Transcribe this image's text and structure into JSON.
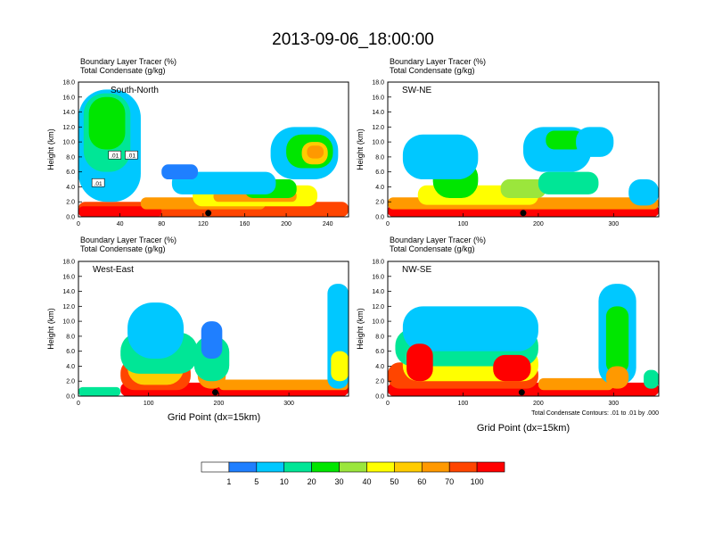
{
  "title": "2013-09-06_18:00:00",
  "panel_header": {
    "line1": "Boundary Layer Tracer   (%)",
    "line2": "Total Condensate   (g/kg)"
  },
  "y_axis": {
    "label": "Height (km)",
    "ticks": [
      "0.0",
      "2.0",
      "4.0",
      "6.0",
      "8.0",
      "10.0",
      "12.0",
      "14.0",
      "16.0",
      "18.0"
    ]
  },
  "x_axis": {
    "label": "Grid Point (dx=15km)"
  },
  "contour_note": "Total Condensate Contours: .01 to .01 by .000",
  "colors": [
    "#ffffff",
    "#1f7fff",
    "#00c8ff",
    "#00e696",
    "#00e600",
    "#9be63c",
    "#ffff00",
    "#ffcc00",
    "#ff9900",
    "#ff4500",
    "#ff0000"
  ],
  "colorbar": {
    "labels": [
      "1",
      "5",
      "10",
      "20",
      "30",
      "40",
      "50",
      "60",
      "70",
      "100"
    ]
  },
  "chart_data": [
    {
      "type": "heatmap",
      "name": "South-North",
      "xlim": [
        0,
        260
      ],
      "ylim": [
        0,
        18
      ],
      "x_ticks": [
        "0",
        "40",
        "80",
        "120",
        "160",
        "200",
        "240"
      ],
      "x_tick_values": [
        0,
        40,
        80,
        120,
        160,
        200,
        240
      ],
      "marker_x": 125,
      "contour_labels": [
        {
          "text": ".01",
          "x": 35,
          "y": 8.2
        },
        {
          "text": ".01",
          "x": 51,
          "y": 8.2
        },
        {
          "text": ".01",
          "x": 19,
          "y": 4.5
        }
      ],
      "blobs": [
        {
          "x": [
            0,
            260
          ],
          "y": [
            0,
            2.0
          ],
          "lev": 9
        },
        {
          "x": [
            0,
            80
          ],
          "y": [
            0,
            1.4
          ],
          "lev": 10
        },
        {
          "x": [
            60,
            180
          ],
          "y": [
            1.0,
            2.6
          ],
          "lev": 8
        },
        {
          "x": [
            110,
            230
          ],
          "y": [
            1.4,
            4.2
          ],
          "lev": 6
        },
        {
          "x": [
            130,
            210
          ],
          "y": [
            2.0,
            3.5
          ],
          "lev": 8
        },
        {
          "x": [
            160,
            210
          ],
          "y": [
            2.5,
            5.0
          ],
          "lev": 4
        },
        {
          "x": [
            90,
            190
          ],
          "y": [
            3.0,
            6.0
          ],
          "lev": 2
        },
        {
          "x": [
            0,
            60
          ],
          "y": [
            2.0,
            17.0
          ],
          "lev": 2
        },
        {
          "x": [
            5,
            50
          ],
          "y": [
            6.0,
            16.5
          ],
          "lev": 3
        },
        {
          "x": [
            10,
            45
          ],
          "y": [
            9.0,
            16.0
          ],
          "lev": 4
        },
        {
          "x": [
            185,
            250
          ],
          "y": [
            5.0,
            12.0
          ],
          "lev": 2
        },
        {
          "x": [
            200,
            245
          ],
          "y": [
            6.5,
            11.0
          ],
          "lev": 4
        },
        {
          "x": [
            215,
            240
          ],
          "y": [
            7.0,
            10.0
          ],
          "lev": 7
        },
        {
          "x": [
            220,
            236
          ],
          "y": [
            7.8,
            9.5
          ],
          "lev": 8
        },
        {
          "x": [
            80,
            115
          ],
          "y": [
            5.0,
            7.0
          ],
          "lev": 1
        }
      ]
    },
    {
      "type": "heatmap",
      "name": "SW-NE",
      "xlim": [
        0,
        360
      ],
      "ylim": [
        0,
        18
      ],
      "x_ticks": [
        "0",
        "100",
        "200",
        "300"
      ],
      "x_tick_values": [
        0,
        100,
        200,
        300
      ],
      "marker_x": 180,
      "contour_labels": [],
      "blobs": [
        {
          "x": [
            0,
            360
          ],
          "y": [
            0,
            1.6
          ],
          "lev": 10
        },
        {
          "x": [
            0,
            360
          ],
          "y": [
            1.0,
            2.6
          ],
          "lev": 8
        },
        {
          "x": [
            40,
            200
          ],
          "y": [
            1.6,
            4.2
          ],
          "lev": 6
        },
        {
          "x": [
            60,
            120
          ],
          "y": [
            2.5,
            7.5
          ],
          "lev": 4
        },
        {
          "x": [
            20,
            120
          ],
          "y": [
            5.0,
            11.0
          ],
          "lev": 2
        },
        {
          "x": [
            150,
            210
          ],
          "y": [
            2.5,
            5.0
          ],
          "lev": 5
        },
        {
          "x": [
            200,
            280
          ],
          "y": [
            3.0,
            6.0
          ],
          "lev": 3
        },
        {
          "x": [
            180,
            270
          ],
          "y": [
            6.0,
            12.0
          ],
          "lev": 2
        },
        {
          "x": [
            210,
            260
          ],
          "y": [
            9.0,
            11.5
          ],
          "lev": 4
        },
        {
          "x": [
            250,
            300
          ],
          "y": [
            8.0,
            12.0
          ],
          "lev": 2
        },
        {
          "x": [
            320,
            360
          ],
          "y": [
            1.5,
            5.0
          ],
          "lev": 2
        }
      ]
    },
    {
      "type": "heatmap",
      "name": "West-East",
      "xlim": [
        0,
        385
      ],
      "ylim": [
        0,
        18
      ],
      "x_ticks": [
        "0",
        "100",
        "200",
        "300"
      ],
      "x_tick_values": [
        0,
        100,
        200,
        300
      ],
      "marker_x": 195,
      "contour_labels": [],
      "blobs": [
        {
          "x": [
            0,
            60
          ],
          "y": [
            0,
            1.2
          ],
          "lev": 3
        },
        {
          "x": [
            60,
            385
          ],
          "y": [
            0,
            1.8
          ],
          "lev": 10
        },
        {
          "x": [
            60,
            160
          ],
          "y": [
            0.8,
            5.0
          ],
          "lev": 9
        },
        {
          "x": [
            70,
            150
          ],
          "y": [
            1.5,
            6.5
          ],
          "lev": 7
        },
        {
          "x": [
            60,
            170
          ],
          "y": [
            3.0,
            8.5
          ],
          "lev": 3
        },
        {
          "x": [
            70,
            150
          ],
          "y": [
            5.0,
            12.5
          ],
          "lev": 2
        },
        {
          "x": [
            170,
            210
          ],
          "y": [
            1.0,
            5.0
          ],
          "lev": 8
        },
        {
          "x": [
            165,
            215
          ],
          "y": [
            2.0,
            8.0
          ],
          "lev": 3
        },
        {
          "x": [
            175,
            205
          ],
          "y": [
            5.0,
            10.0
          ],
          "lev": 1
        },
        {
          "x": [
            200,
            385
          ],
          "y": [
            0.8,
            2.2
          ],
          "lev": 8
        },
        {
          "x": [
            355,
            385
          ],
          "y": [
            1.0,
            15.0
          ],
          "lev": 2
        },
        {
          "x": [
            360,
            385
          ],
          "y": [
            2.0,
            6.0
          ],
          "lev": 6
        }
      ]
    },
    {
      "type": "heatmap",
      "name": "NW-SE",
      "xlim": [
        0,
        360
      ],
      "ylim": [
        0,
        18
      ],
      "x_ticks": [
        "0",
        "100",
        "200",
        "300"
      ],
      "x_tick_values": [
        0,
        100,
        200,
        300
      ],
      "marker_x": 178,
      "contour_labels": [],
      "blobs": [
        {
          "x": [
            0,
            360
          ],
          "y": [
            0,
            1.8
          ],
          "lev": 10
        },
        {
          "x": [
            0,
            200
          ],
          "y": [
            1.0,
            4.5
          ],
          "lev": 9
        },
        {
          "x": [
            20,
            200
          ],
          "y": [
            2.0,
            6.5
          ],
          "lev": 6
        },
        {
          "x": [
            10,
            200
          ],
          "y": [
            4.0,
            9.0
          ],
          "lev": 3
        },
        {
          "x": [
            20,
            200
          ],
          "y": [
            6.0,
            12.0
          ],
          "lev": 2
        },
        {
          "x": [
            25,
            60
          ],
          "y": [
            2.0,
            7.0
          ],
          "lev": 10
        },
        {
          "x": [
            140,
            190
          ],
          "y": [
            2.0,
            5.5
          ],
          "lev": 10
        },
        {
          "x": [
            200,
            300
          ],
          "y": [
            0.8,
            2.4
          ],
          "lev": 8
        },
        {
          "x": [
            280,
            330
          ],
          "y": [
            1.5,
            15.0
          ],
          "lev": 2
        },
        {
          "x": [
            290,
            320
          ],
          "y": [
            3.0,
            12.0
          ],
          "lev": 4
        },
        {
          "x": [
            290,
            320
          ],
          "y": [
            1.0,
            4.0
          ],
          "lev": 8
        },
        {
          "x": [
            340,
            360
          ],
          "y": [
            1.0,
            3.5
          ],
          "lev": 3
        }
      ]
    }
  ]
}
